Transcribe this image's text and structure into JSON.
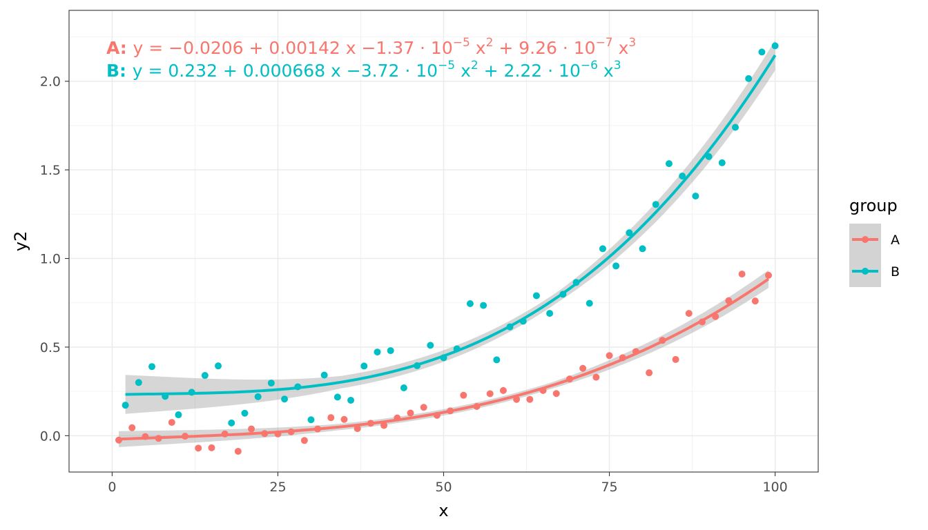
{
  "chart_data": {
    "type": "scatter",
    "xlabel": "x",
    "ylabel": "y2",
    "xlim": [
      -6.5,
      106.5
    ],
    "ylim": [
      -0.205,
      2.4
    ],
    "x_ticks": [
      0,
      25,
      50,
      75,
      100
    ],
    "x_tick_labels": [
      "0",
      "25",
      "50",
      "75",
      "100"
    ],
    "y_ticks": [
      0.0,
      0.5,
      1.0,
      1.5,
      2.0
    ],
    "y_tick_labels": [
      "0.0",
      "0.5",
      "1.0",
      "1.5",
      "2.0"
    ],
    "grid": true,
    "legend": {
      "title": "group",
      "position": "right",
      "entries": [
        {
          "label": "A",
          "color": "#F8766D"
        },
        {
          "label": "B",
          "color": "#00BFC4"
        }
      ]
    },
    "series": [
      {
        "name": "A",
        "color": "#F8766D",
        "coef": [
          -0.0206,
          0.00142,
          -1.37e-05,
          9.26e-07
        ],
        "fit_range": [
          1,
          99
        ],
        "band_halfwidth": [
          0.045,
          0.018,
          0.018,
          0.05
        ],
        "equation": {
          "label": "A:",
          "parts": [
            {
              "t": "y = −0.0206 + 0.00142 x −1.37 · 10"
            },
            {
              "t": "−5",
              "sup": true
            },
            {
              "t": " x"
            },
            {
              "t": "2",
              "sup": true
            },
            {
              "t": " + 9.26 · 10"
            },
            {
              "t": "−7",
              "sup": true
            },
            {
              "t": " x"
            },
            {
              "t": "3",
              "sup": true
            }
          ]
        },
        "points": [
          {
            "x": 1,
            "y": -0.025
          },
          {
            "x": 3,
            "y": 0.045
          },
          {
            "x": 5,
            "y": -0.005
          },
          {
            "x": 7,
            "y": -0.015
          },
          {
            "x": 9,
            "y": 0.075
          },
          {
            "x": 11,
            "y": -0.003
          },
          {
            "x": 13,
            "y": -0.07
          },
          {
            "x": 15,
            "y": -0.068
          },
          {
            "x": 17,
            "y": 0.01
          },
          {
            "x": 19,
            "y": -0.088
          },
          {
            "x": 21,
            "y": 0.038
          },
          {
            "x": 23,
            "y": 0.012
          },
          {
            "x": 25,
            "y": 0.01
          },
          {
            "x": 27,
            "y": 0.022
          },
          {
            "x": 29,
            "y": -0.027
          },
          {
            "x": 31,
            "y": 0.038
          },
          {
            "x": 33,
            "y": 0.102
          },
          {
            "x": 35,
            "y": 0.092
          },
          {
            "x": 37,
            "y": 0.04
          },
          {
            "x": 39,
            "y": 0.07
          },
          {
            "x": 41,
            "y": 0.058
          },
          {
            "x": 43,
            "y": 0.1
          },
          {
            "x": 45,
            "y": 0.128
          },
          {
            "x": 47,
            "y": 0.16
          },
          {
            "x": 49,
            "y": 0.115
          },
          {
            "x": 51,
            "y": 0.14
          },
          {
            "x": 53,
            "y": 0.228
          },
          {
            "x": 55,
            "y": 0.165
          },
          {
            "x": 57,
            "y": 0.237
          },
          {
            "x": 59,
            "y": 0.255
          },
          {
            "x": 61,
            "y": 0.205
          },
          {
            "x": 63,
            "y": 0.205
          },
          {
            "x": 65,
            "y": 0.255
          },
          {
            "x": 67,
            "y": 0.238
          },
          {
            "x": 69,
            "y": 0.32
          },
          {
            "x": 71,
            "y": 0.38
          },
          {
            "x": 73,
            "y": 0.33
          },
          {
            "x": 75,
            "y": 0.452
          },
          {
            "x": 77,
            "y": 0.44
          },
          {
            "x": 79,
            "y": 0.475
          },
          {
            "x": 81,
            "y": 0.355
          },
          {
            "x": 83,
            "y": 0.538
          },
          {
            "x": 85,
            "y": 0.43
          },
          {
            "x": 87,
            "y": 0.69
          },
          {
            "x": 89,
            "y": 0.642
          },
          {
            "x": 91,
            "y": 0.672
          },
          {
            "x": 93,
            "y": 0.762
          },
          {
            "x": 95,
            "y": 0.912
          },
          {
            "x": 97,
            "y": 0.76
          },
          {
            "x": 99,
            "y": 0.905
          }
        ]
      },
      {
        "name": "B",
        "color": "#00BFC4",
        "coef": [
          0.232,
          0.000668,
          -3.72e-05,
          2.22e-06
        ],
        "fit_range": [
          2,
          100
        ],
        "band_halfwidth": [
          0.11,
          0.035,
          0.03,
          0.085
        ],
        "equation": {
          "label": "B:",
          "parts": [
            {
              "t": "y = 0.232 + 0.000668 x −3.72 · 10"
            },
            {
              "t": "−5",
              "sup": true
            },
            {
              "t": " x"
            },
            {
              "t": "2",
              "sup": true
            },
            {
              "t": " + 2.22 · 10"
            },
            {
              "t": "−6",
              "sup": true
            },
            {
              "t": " x"
            },
            {
              "t": "3",
              "sup": true
            }
          ]
        },
        "points": [
          {
            "x": 2,
            "y": 0.172
          },
          {
            "x": 4,
            "y": 0.3
          },
          {
            "x": 6,
            "y": 0.39
          },
          {
            "x": 8,
            "y": 0.222
          },
          {
            "x": 10,
            "y": 0.118
          },
          {
            "x": 12,
            "y": 0.245
          },
          {
            "x": 14,
            "y": 0.34
          },
          {
            "x": 16,
            "y": 0.394
          },
          {
            "x": 18,
            "y": 0.072
          },
          {
            "x": 20,
            "y": 0.127
          },
          {
            "x": 22,
            "y": 0.22
          },
          {
            "x": 24,
            "y": 0.297
          },
          {
            "x": 26,
            "y": 0.207
          },
          {
            "x": 28,
            "y": 0.276
          },
          {
            "x": 30,
            "y": 0.09
          },
          {
            "x": 32,
            "y": 0.342
          },
          {
            "x": 34,
            "y": 0.218
          },
          {
            "x": 36,
            "y": 0.2
          },
          {
            "x": 38,
            "y": 0.393
          },
          {
            "x": 40,
            "y": 0.472
          },
          {
            "x": 42,
            "y": 0.48
          },
          {
            "x": 44,
            "y": 0.27
          },
          {
            "x": 46,
            "y": 0.395
          },
          {
            "x": 48,
            "y": 0.51
          },
          {
            "x": 50,
            "y": 0.44
          },
          {
            "x": 52,
            "y": 0.49
          },
          {
            "x": 54,
            "y": 0.745
          },
          {
            "x": 56,
            "y": 0.735
          },
          {
            "x": 58,
            "y": 0.428
          },
          {
            "x": 60,
            "y": 0.614
          },
          {
            "x": 62,
            "y": 0.646
          },
          {
            "x": 64,
            "y": 0.79
          },
          {
            "x": 66,
            "y": 0.69
          },
          {
            "x": 68,
            "y": 0.798
          },
          {
            "x": 70,
            "y": 0.865
          },
          {
            "x": 72,
            "y": 0.747
          },
          {
            "x": 74,
            "y": 1.055
          },
          {
            "x": 76,
            "y": 0.958
          },
          {
            "x": 78,
            "y": 1.145
          },
          {
            "x": 80,
            "y": 1.055
          },
          {
            "x": 82,
            "y": 1.305
          },
          {
            "x": 84,
            "y": 1.535
          },
          {
            "x": 86,
            "y": 1.465
          },
          {
            "x": 88,
            "y": 1.352
          },
          {
            "x": 90,
            "y": 1.575
          },
          {
            "x": 92,
            "y": 1.54
          },
          {
            "x": 94,
            "y": 1.74
          },
          {
            "x": 96,
            "y": 2.015
          },
          {
            "x": 98,
            "y": 2.165
          },
          {
            "x": 100,
            "y": 2.2
          }
        ]
      }
    ]
  }
}
